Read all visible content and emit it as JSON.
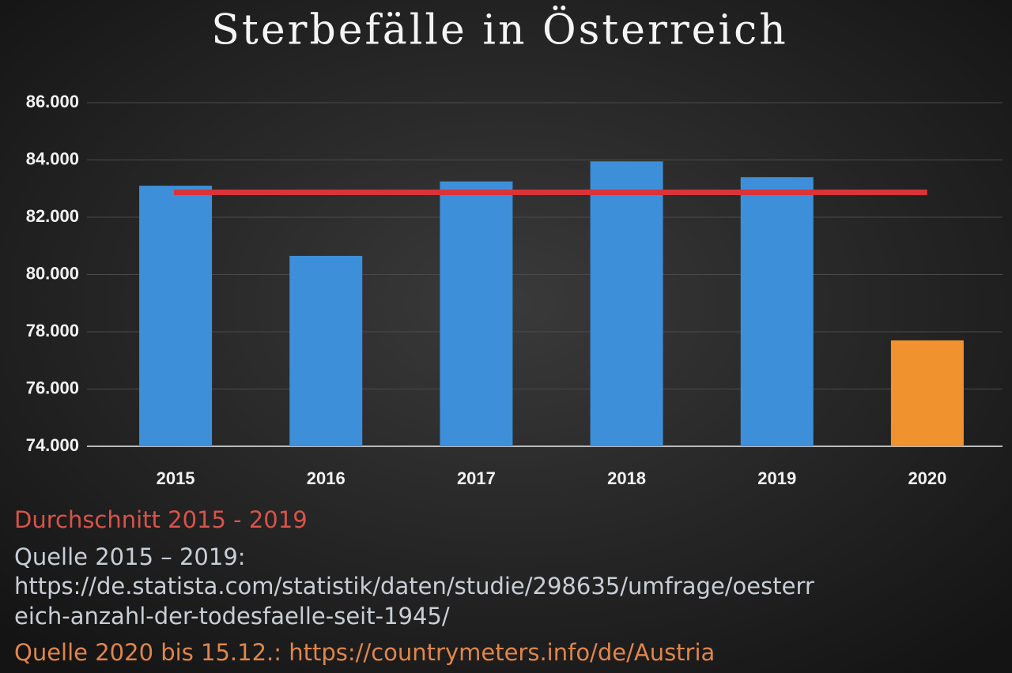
{
  "chart_data": {
    "type": "bar",
    "title": "Sterbefälle in Österreich",
    "categories": [
      "2015",
      "2016",
      "2017",
      "2018",
      "2019",
      "2020"
    ],
    "values": [
      83100,
      80650,
      83250,
      83950,
      83400,
      77700
    ],
    "colors": [
      "#3d8fd9",
      "#3d8fd9",
      "#3d8fd9",
      "#3d8fd9",
      "#3d8fd9",
      "#f0922e"
    ],
    "average": {
      "name": "Durchschnitt 2015 - 2019",
      "value": 82870,
      "color": "#d8343a"
    },
    "ylim": [
      74000,
      86000
    ],
    "yticks": [
      {
        "value": 74000,
        "label": "74.000"
      },
      {
        "value": 76000,
        "label": "76.000"
      },
      {
        "value": 78000,
        "label": "78.000"
      },
      {
        "value": 80000,
        "label": "80.000"
      },
      {
        "value": 82000,
        "label": "82.000"
      },
      {
        "value": 84000,
        "label": "84.000"
      },
      {
        "value": 86000,
        "label": "86.000"
      }
    ],
    "grid": true,
    "source_lines": [
      "Quelle 2015 – 2019:",
      "https://de.statista.com/statistik/daten/studie/298635/umfrage/oesterr",
      "eich-anzahl-der-todesfaelle-seit-1945/"
    ],
    "source_2020": "Quelle 2020 bis 15.12.: https://countrymeters.info/de/Austria"
  }
}
